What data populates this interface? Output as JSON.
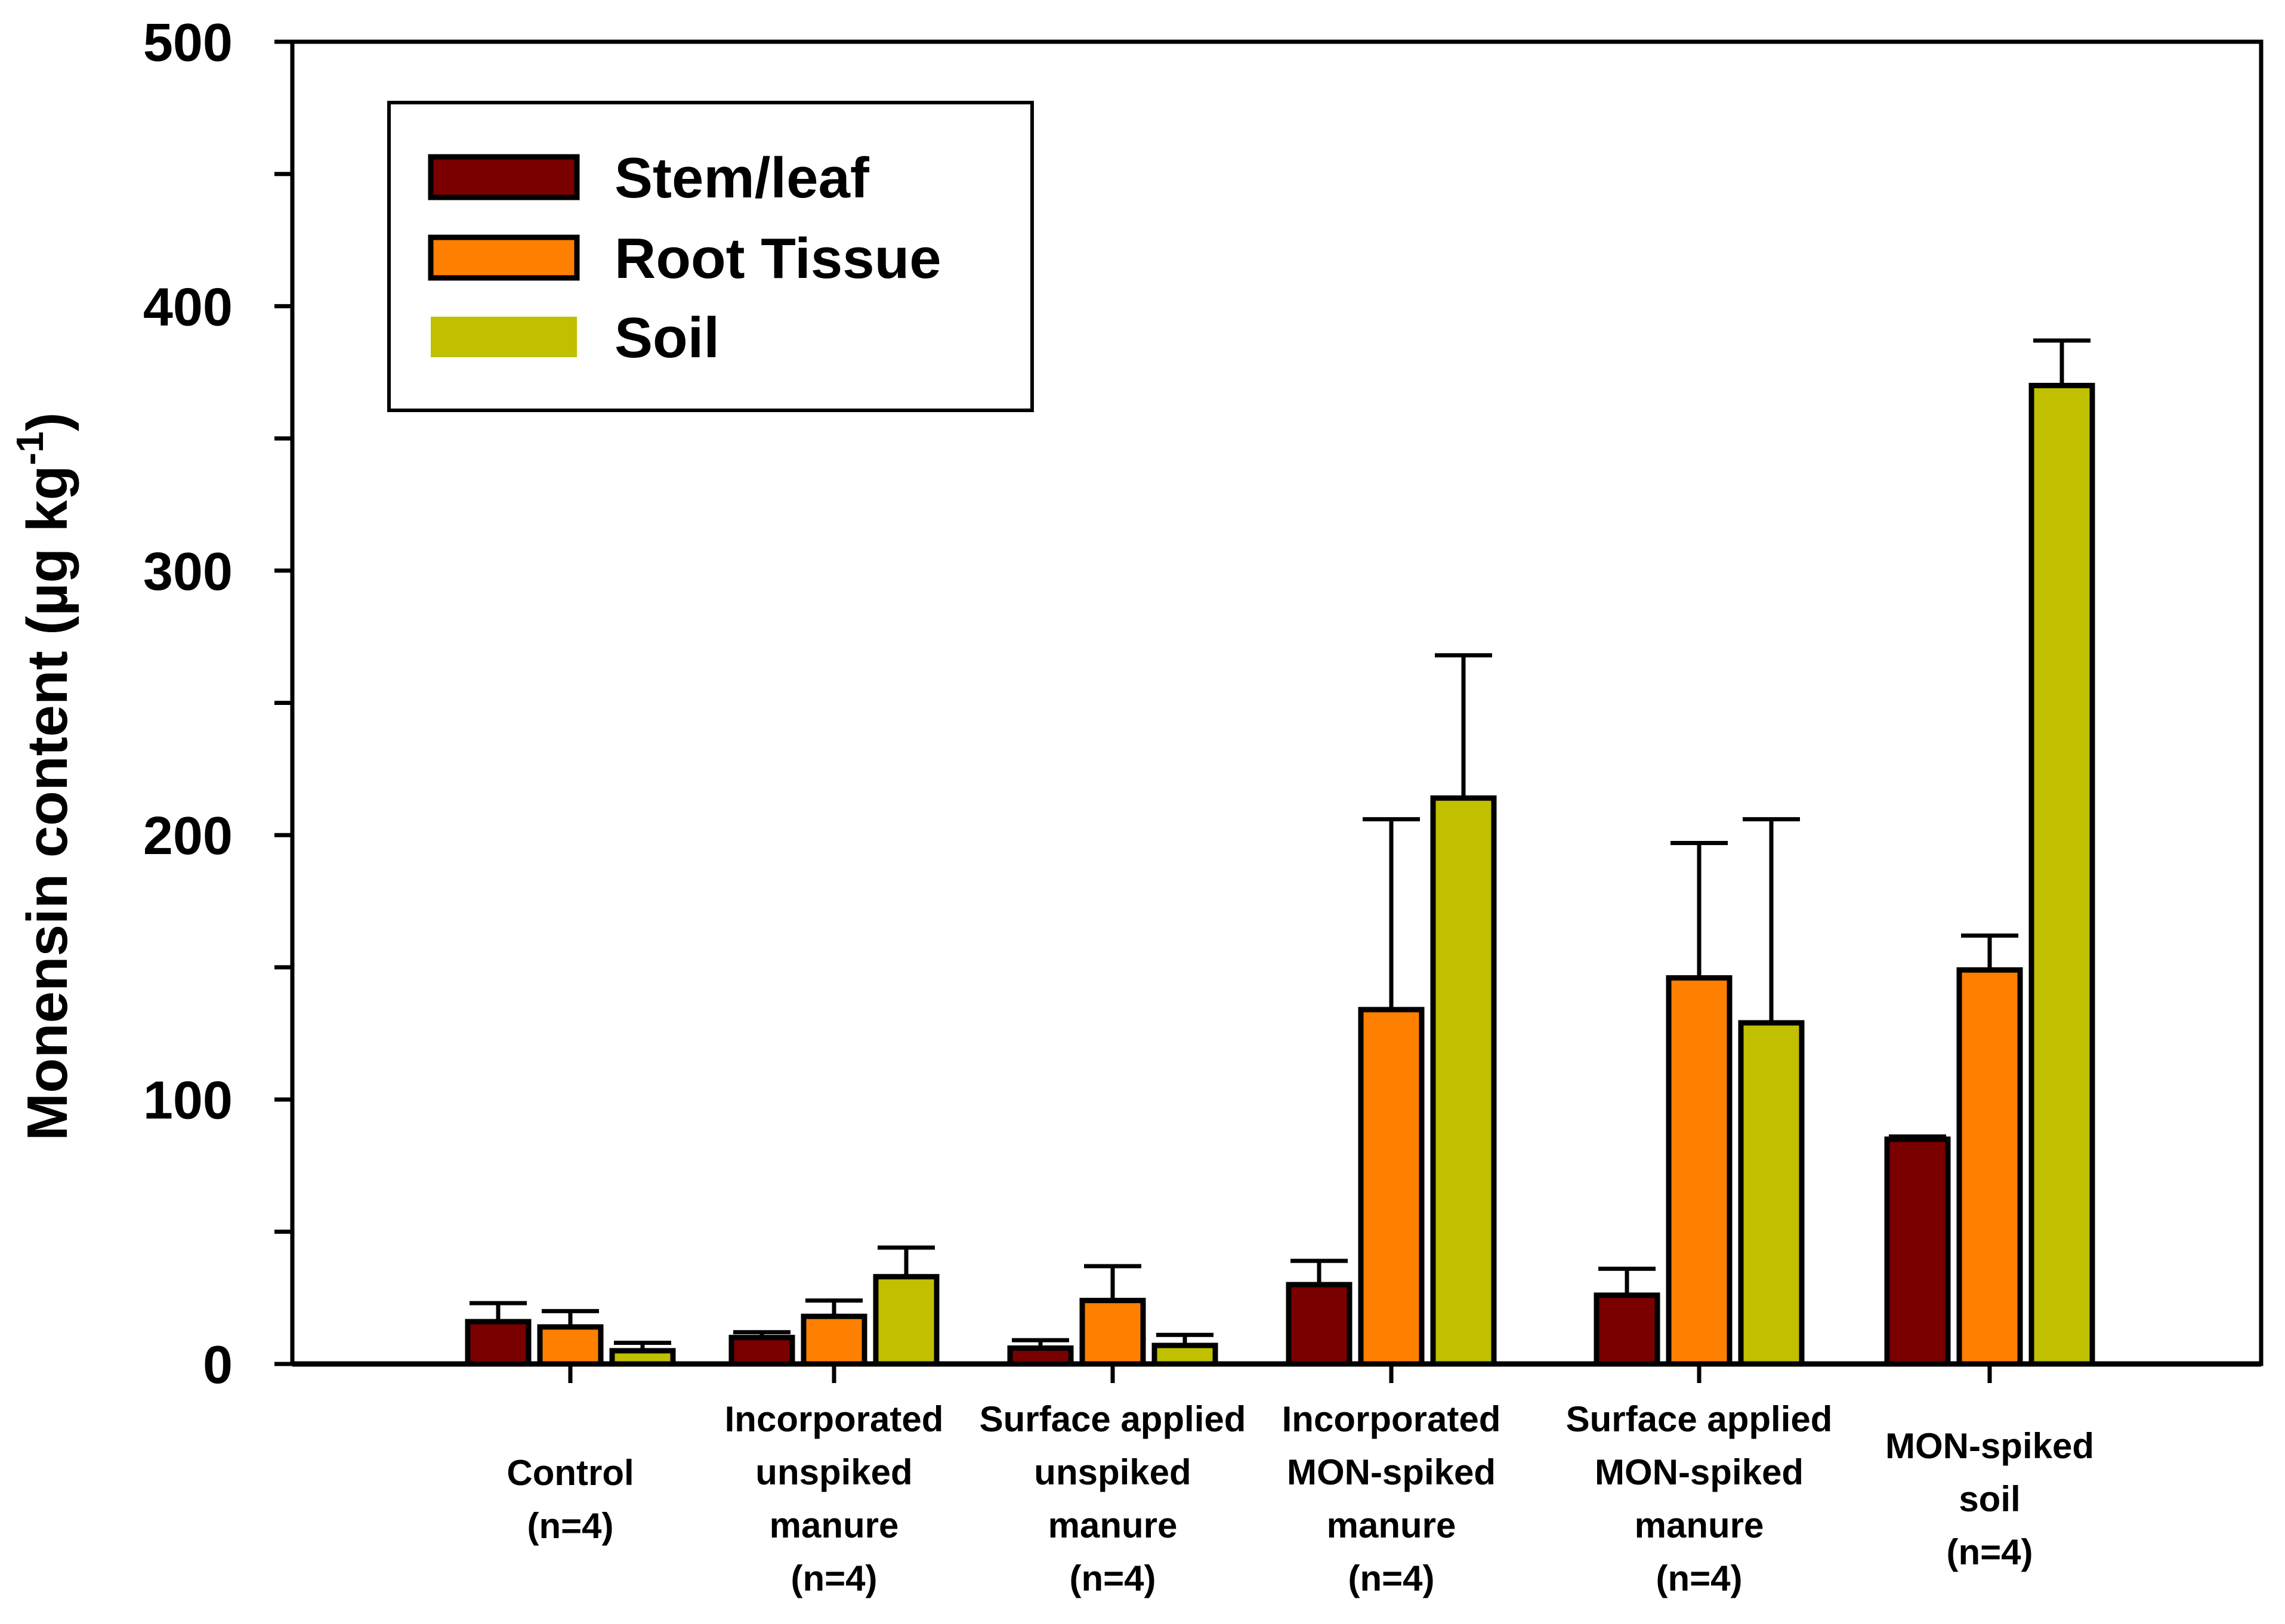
{
  "chart_data": {
    "type": "bar",
    "title": "",
    "xlabel": "",
    "ylabel": "Monensin content (µg kg",
    "ylabel_superscript": "-1",
    "ylabel_close": ")",
    "ylim": [
      0,
      500
    ],
    "yticks": [
      "0",
      "100",
      "200",
      "300",
      "400",
      "500"
    ],
    "grid": false,
    "legend_position": "top-left",
    "categories": [
      [
        "Control",
        "(n=4)"
      ],
      [
        "Incorporated",
        "unspiked",
        "manure",
        "(n=4)"
      ],
      [
        "Surface applied",
        "unspiked",
        "manure",
        "(n=4)"
      ],
      [
        "Incorporated",
        "MON-spiked",
        "manure",
        "(n=4)"
      ],
      [
        "Surface applied",
        "MON-spiked",
        "manure",
        "(n=4)"
      ],
      [
        "MON-spiked",
        "soil",
        "(n=4)"
      ]
    ],
    "series": [
      {
        "name": "Stem/leaf",
        "color": "#7a0000",
        "values": [
          16,
          10,
          6,
          30,
          26,
          85
        ],
        "errors": [
          7,
          2,
          3,
          9,
          10,
          1
        ]
      },
      {
        "name": "Root Tissue",
        "color": "#ff8000",
        "values": [
          14,
          18,
          24,
          134,
          146,
          149
        ],
        "errors": [
          6,
          6,
          13,
          72,
          51,
          13
        ]
      },
      {
        "name": "Soil",
        "color": "#c0c000",
        "values": [
          5,
          33,
          7,
          214,
          129,
          370
        ],
        "errors": [
          3,
          11,
          4,
          54,
          77,
          17
        ]
      }
    ]
  }
}
